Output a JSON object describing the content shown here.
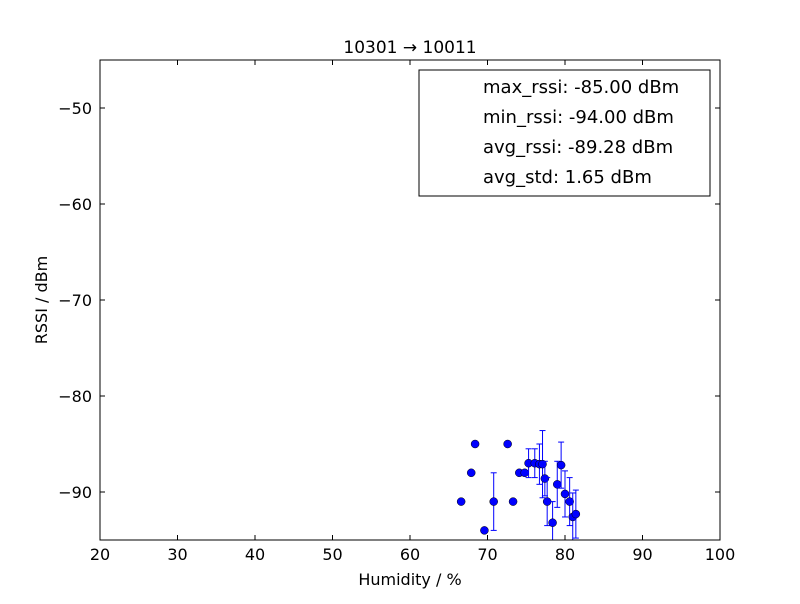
{
  "chart_data": {
    "type": "scatter",
    "title": "10301 → 10011",
    "xlabel": "Humidity / %",
    "ylabel": "RSSI / dBm",
    "xlim": [
      20,
      100
    ],
    "ylim": [
      -95,
      -45
    ],
    "x_ticks": [
      20,
      30,
      40,
      50,
      60,
      70,
      80,
      90,
      100
    ],
    "y_ticks": [
      -90,
      -80,
      -70,
      -60,
      -50
    ],
    "x_tick_labels": [
      "20",
      "30",
      "40",
      "50",
      "60",
      "70",
      "80",
      "90",
      "100"
    ],
    "y_tick_labels": [
      "−90",
      "−80",
      "−70",
      "−60",
      "−50"
    ],
    "grid": false,
    "legend_position": "top-right",
    "legend_entries": [
      "max_rssi: -85.00 dBm",
      "min_rssi: -94.00 dBm",
      "avg_rssi: -89.28 dBm",
      "avg_std: 1.65 dBm"
    ],
    "marker_color": "#0000ff",
    "errorbar_color": "#0000ff",
    "points": [
      {
        "x": 66.6,
        "y": -91.0,
        "err": 0
      },
      {
        "x": 67.9,
        "y": -88.0,
        "err": 0
      },
      {
        "x": 68.4,
        "y": -85.0,
        "err": 0
      },
      {
        "x": 69.6,
        "y": -94.0,
        "err": 0
      },
      {
        "x": 70.8,
        "y": -91.0,
        "err": 3.0
      },
      {
        "x": 72.6,
        "y": -85.0,
        "err": 0
      },
      {
        "x": 73.3,
        "y": -91.0,
        "err": 0
      },
      {
        "x": 74.1,
        "y": -88.0,
        "err": 0
      },
      {
        "x": 74.8,
        "y": -88.0,
        "err": 0
      },
      {
        "x": 75.3,
        "y": -87.0,
        "err": 1.5
      },
      {
        "x": 76.1,
        "y": -87.0,
        "err": 1.5
      },
      {
        "x": 76.7,
        "y": -87.1,
        "err": 2.1
      },
      {
        "x": 77.1,
        "y": -87.1,
        "err": 3.5
      },
      {
        "x": 77.4,
        "y": -88.6,
        "err": 1.8
      },
      {
        "x": 77.7,
        "y": -91.0,
        "err": 2.5
      },
      {
        "x": 78.4,
        "y": -93.2,
        "err": 2.2
      },
      {
        "x": 79.0,
        "y": -89.2,
        "err": 2.4
      },
      {
        "x": 79.5,
        "y": -87.2,
        "err": 2.4
      },
      {
        "x": 80.0,
        "y": -90.2,
        "err": 2.4
      },
      {
        "x": 80.6,
        "y": -91.0,
        "err": 2.5
      },
      {
        "x": 81.0,
        "y": -92.6,
        "err": 2.5
      },
      {
        "x": 81.4,
        "y": -92.3,
        "err": 2.5
      }
    ]
  }
}
